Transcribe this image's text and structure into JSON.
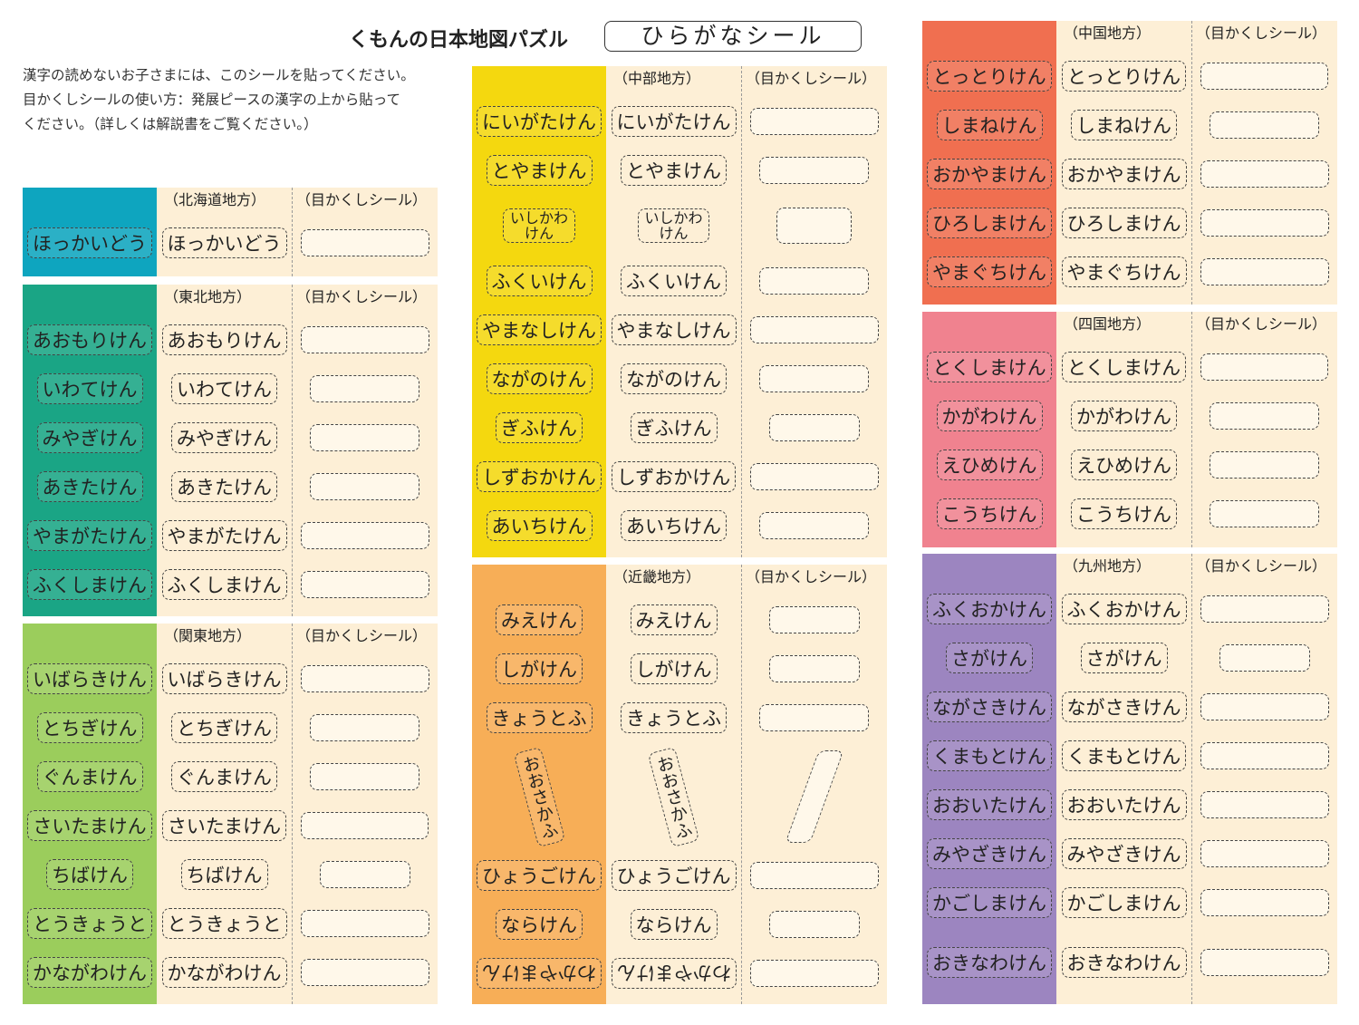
{
  "header": {
    "title": "くもんの日本地図パズル",
    "badge": "ひらがなシール",
    "intro": [
      "漢字の読めないお子さまには、このシールを貼ってください。",
      "目かくしシールの使い方：発展ピースの漢字の上から貼って",
      "ください。（詳しくは解説書をご覧ください。）"
    ]
  },
  "regions": [
    {
      "heading": "（北海道地方）",
      "blank_heading": "（目かくしシール）",
      "color": "#0ea5bf",
      "items": [
        "ほっかいどう"
      ]
    },
    {
      "heading": "（東北地方）",
      "blank_heading": "（目かくしシール）",
      "color": "#1aa585",
      "items": [
        "あおもりけん",
        "いわてけん",
        "みやぎけん",
        "あきたけん",
        "やまがたけん",
        "ふくしまけん"
      ]
    },
    {
      "heading": "（関東地方）",
      "blank_heading": "（目かくしシール）",
      "color": "#9bcd5c",
      "items": [
        "いばらきけん",
        "とちぎけん",
        "ぐんまけん",
        "さいたまけん",
        "ちばけん",
        "とうきょうと",
        "かながわけん"
      ]
    },
    {
      "heading": "（中部地方）",
      "blank_heading": "（目かくしシール）",
      "color": "#f4d80f",
      "items": [
        "にいがたけん",
        "とやまけん",
        "いしかわけん",
        "ふくいけん",
        "やまなしけん",
        "ながのけん",
        "ぎふけん",
        "しずおかけん",
        "あいちけん"
      ]
    },
    {
      "heading": "（近畿地方）",
      "blank_heading": "（目かくしシール）",
      "color": "#f7ae57",
      "items": [
        "みえけん",
        "しがけん",
        "きょうとふ",
        "おおさかふ",
        "ひょうごけん",
        "ならけん",
        "わかやまけん"
      ]
    },
    {
      "heading": "（中国地方）",
      "blank_heading": "（目かくしシール）",
      "color": "#f06f50",
      "items": [
        "とっとりけん",
        "しまねけん",
        "おかやまけん",
        "ひろしまけん",
        "やまぐちけん"
      ]
    },
    {
      "heading": "（四国地方）",
      "blank_heading": "（目かくしシール）",
      "color": "#f0828f",
      "items": [
        "とくしまけん",
        "かがわけん",
        "えひめけん",
        "こうちけん"
      ]
    },
    {
      "heading": "（九州地方）",
      "blank_heading": "（目かくしシール）",
      "color": "#9c85c0",
      "items": [
        "ふくおかけん",
        "さがけん",
        "ながさきけん",
        "くまもとけん",
        "おおいたけん",
        "みやざきけん",
        "かごしまけん",
        "おきなわけん"
      ]
    }
  ]
}
